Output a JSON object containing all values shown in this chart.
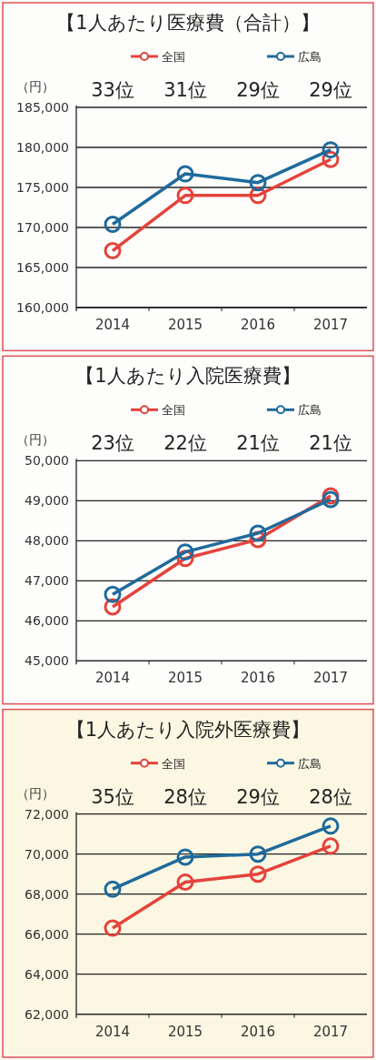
{
  "chart_data": [
    {
      "type": "line",
      "title": "【1人あたり医療費（合計）】",
      "ylabel": "（円）",
      "categories": [
        "2014",
        "2015",
        "2016",
        "2017"
      ],
      "series": [
        {
          "name": "全国",
          "color": "#e4433b",
          "values": [
            167100,
            174000,
            174000,
            178500
          ]
        },
        {
          "name": "広島",
          "color": "#1f6a9c",
          "values": [
            170400,
            176700,
            175600,
            179700
          ]
        }
      ],
      "ylim": [
        160000,
        185000
      ],
      "yticks": [
        {
          "value": 160000,
          "label": "160,000"
        },
        {
          "value": 165000,
          "label": "165,000"
        },
        {
          "value": 170000,
          "label": "170,000"
        },
        {
          "value": 175000,
          "label": "175,000"
        },
        {
          "value": 180000,
          "label": "180,000"
        },
        {
          "value": 185000,
          "label": "185,000"
        }
      ],
      "annotations": [
        "33位",
        "31位",
        "29位",
        "29位"
      ],
      "grid": "y",
      "legend": "top",
      "marker": "circle"
    },
    {
      "type": "line",
      "title": "【1人あたり入院医療費】",
      "ylabel": "（円）",
      "categories": [
        "2014",
        "2015",
        "2016",
        "2017"
      ],
      "series": [
        {
          "name": "全国",
          "color": "#e4433b",
          "values": [
            46350,
            47560,
            48030,
            49120
          ]
        },
        {
          "name": "広島",
          "color": "#1f6a9c",
          "values": [
            46660,
            47720,
            48190,
            49030
          ]
        }
      ],
      "ylim": [
        45000,
        50000
      ],
      "yticks": [
        {
          "value": 45000,
          "label": "45,000"
        },
        {
          "value": 46000,
          "label": "46,000"
        },
        {
          "value": 47000,
          "label": "47,000"
        },
        {
          "value": 48000,
          "label": "48,000"
        },
        {
          "value": 49000,
          "label": "49,000"
        },
        {
          "value": 50000,
          "label": "50,000"
        }
      ],
      "annotations": [
        "23位",
        "22位",
        "21位",
        "21位"
      ],
      "grid": "y",
      "legend": "top",
      "marker": "circle"
    },
    {
      "type": "line",
      "title": "【1人あたり入院外医療費】",
      "ylabel": "（円）",
      "categories": [
        "2014",
        "2015",
        "2016",
        "2017"
      ],
      "series": [
        {
          "name": "全国",
          "color": "#e4433b",
          "values": [
            66300,
            68600,
            69000,
            70400
          ]
        },
        {
          "name": "広島",
          "color": "#1f6a9c",
          "values": [
            68250,
            69850,
            70000,
            71400
          ]
        }
      ],
      "ylim": [
        62000,
        72000
      ],
      "yticks": [
        {
          "value": 62000,
          "label": "62,000"
        },
        {
          "value": 64000,
          "label": "64,000"
        },
        {
          "value": 66000,
          "label": "66,000"
        },
        {
          "value": 68000,
          "label": "68,000"
        },
        {
          "value": 70000,
          "label": "70,000"
        },
        {
          "value": 72000,
          "label": "72,000"
        }
      ],
      "annotations": [
        "35位",
        "28位",
        "29位",
        "28位"
      ],
      "grid": "y",
      "legend": "top",
      "marker": "circle"
    }
  ]
}
